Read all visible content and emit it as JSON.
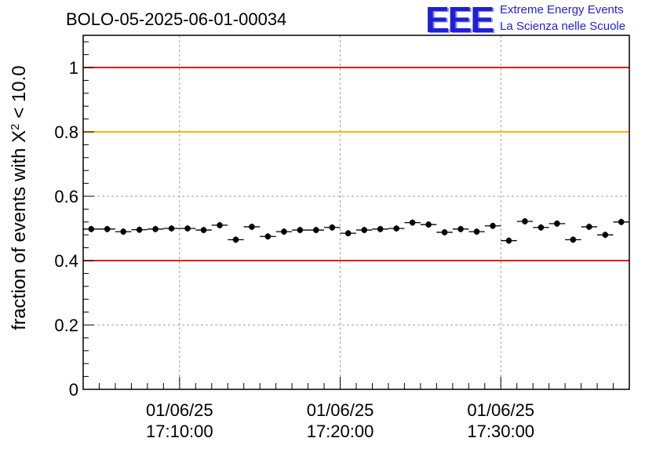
{
  "header": {
    "run_id": "BOLO-05-2025-06-01-00034"
  },
  "logo": {
    "mark": "EEE",
    "line1": "Extreme Energy Events",
    "line2": "La Scienza nelle Scuole",
    "color": "#1f1fd6"
  },
  "chart_data": {
    "type": "scatter",
    "title": "BOLO-05-2025-06-01-00034",
    "ylabel": "fraction of events with X",
    "ylabel_sup": "2",
    "ylabel_tail": " < 10.0",
    "xlabel": "",
    "ylim": [
      0,
      1.1
    ],
    "xlim_minutes": [
      0,
      34
    ],
    "grid": true,
    "y_ticks": [
      "0",
      "0.2",
      "0.4",
      "0.6",
      "0.8",
      "1"
    ],
    "x_ticks": [
      {
        "minute": 6,
        "date": "01/06/25",
        "time": "17:10:00"
      },
      {
        "minute": 16,
        "date": "01/06/25",
        "time": "17:20:00"
      },
      {
        "minute": 26,
        "date": "01/06/25",
        "time": "17:30:00"
      }
    ],
    "reference_lines": [
      {
        "y": 1.0,
        "color": "#e31a1c"
      },
      {
        "y": 0.8,
        "color": "#f5b800"
      },
      {
        "y": 0.4,
        "color": "#e31a1c"
      }
    ],
    "series": [
      {
        "name": "fraction",
        "color": "#000000",
        "x_minutes": [
          0.5,
          1.5,
          2.5,
          3.5,
          4.5,
          5.5,
          6.5,
          7.5,
          8.5,
          9.5,
          10.5,
          11.5,
          12.5,
          13.5,
          14.5,
          15.5,
          16.5,
          17.5,
          18.5,
          19.5,
          20.5,
          21.5,
          22.5,
          23.5,
          24.5,
          25.5,
          26.5,
          27.5,
          28.5,
          29.5,
          30.5,
          31.5,
          32.5,
          33.5
        ],
        "values": [
          0.498,
          0.498,
          0.49,
          0.496,
          0.498,
          0.5,
          0.5,
          0.495,
          0.51,
          0.465,
          0.505,
          0.475,
          0.49,
          0.495,
          0.495,
          0.503,
          0.485,
          0.495,
          0.498,
          0.5,
          0.518,
          0.512,
          0.488,
          0.498,
          0.49,
          0.508,
          0.462,
          0.522,
          0.503,
          0.515,
          0.465,
          0.505,
          0.48,
          0.52
        ],
        "errors": [
          0.01,
          0.01,
          0.01,
          0.01,
          0.01,
          0.01,
          0.01,
          0.01,
          0.01,
          0.01,
          0.01,
          0.01,
          0.01,
          0.01,
          0.01,
          0.01,
          0.01,
          0.01,
          0.01,
          0.01,
          0.01,
          0.01,
          0.01,
          0.01,
          0.01,
          0.01,
          0.01,
          0.01,
          0.01,
          0.01,
          0.01,
          0.01,
          0.01,
          0.01
        ]
      }
    ]
  }
}
